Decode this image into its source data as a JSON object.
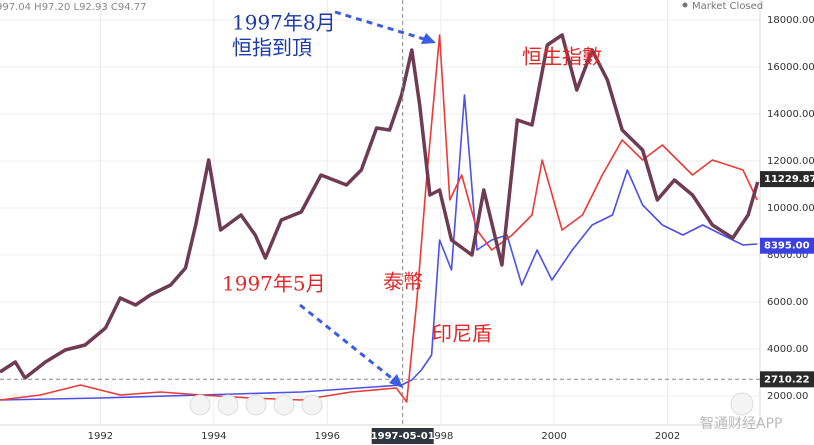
{
  "header": {
    "ohlc": "997.04 H97.20 L92.93 C94.77",
    "status": "Market Closed"
  },
  "watermark": "智通财经APP",
  "chart_data": {
    "type": "line",
    "xlim": [
      1990.23,
      2003.63
    ],
    "xticks": [
      1992,
      1994,
      1996,
      1998,
      2000,
      2002
    ],
    "ylim": [
      766,
      18851
    ],
    "yticks": [
      {
        "value": 2000,
        "label": "2000.00"
      },
      {
        "value": 4000,
        "label": "4000.00"
      },
      {
        "value": 6000,
        "label": "6000.00"
      },
      {
        "value": 8000,
        "label": "8000.00"
      },
      {
        "value": 10000,
        "label": "10000.00"
      },
      {
        "value": 12000,
        "label": "12000.00"
      },
      {
        "value": 14000,
        "label": "14000.00"
      },
      {
        "value": 16000,
        "label": "16000.00"
      },
      {
        "value": 18000,
        "label": "18000.00"
      }
    ],
    "grid": true,
    "series": [
      {
        "color": "#6e3b52",
        "width": 3.5,
        "x": [
          1990.23,
          1990.5,
          1990.67,
          1991.03,
          1991.38,
          1991.73,
          1992.09,
          1992.35,
          1992.62,
          1992.88,
          1993.24,
          1993.5,
          1993.68,
          1993.91,
          1994.12,
          1994.48,
          1994.73,
          1994.91,
          1995.19,
          1995.54,
          1995.89,
          1996.34,
          1996.6,
          1996.87,
          1997.1,
          1997.31,
          1997.49,
          1997.63,
          1997.81,
          1997.98,
          1998.19,
          1998.55,
          1998.76,
          1999.08,
          1999.35,
          1999.61,
          1999.88,
          2000.14,
          2000.4,
          2000.67,
          2000.94,
          2001.2,
          2001.56,
          2001.82,
          2002.12,
          2002.44,
          2002.79,
          2003.15,
          2003.42,
          2003.59
        ],
        "values": [
          3021,
          3447,
          2766,
          3447,
          3957,
          4170,
          4894,
          6170,
          5872,
          6298,
          6723,
          7447,
          9277,
          12043,
          9064,
          9702,
          8851,
          7872,
          9489,
          9830,
          11404,
          10979,
          11617,
          13404,
          13319,
          14809,
          16723,
          14383,
          10553,
          10766,
          8638,
          8000,
          10766,
          7574,
          13745,
          13532,
          16936,
          17362,
          15021,
          16723,
          15447,
          13319,
          12468,
          10340,
          11191,
          10553,
          9277,
          8723,
          9702,
          11106
        ]
      },
      {
        "color": "#ec3a36",
        "width": 1.6,
        "x": [
          1990.23,
          1990.94,
          1991.65,
          1992.35,
          1993.06,
          1993.77,
          1994.65,
          1995.54,
          1996.42,
          1997.22,
          1997.4,
          1997.58,
          1997.75,
          1997.98,
          1998.16,
          1998.37,
          1998.64,
          1998.9,
          1999.26,
          1999.61,
          1999.79,
          2000.14,
          2000.5,
          2000.85,
          2001.2,
          2001.56,
          2001.91,
          2002.44,
          2002.79,
          2003.33,
          2003.58
        ],
        "values": [
          1830,
          2043,
          2468,
          2043,
          2170,
          2043,
          1915,
          1830,
          2170,
          2340,
          1745,
          6085,
          11191,
          17362,
          10340,
          11404,
          9064,
          8213,
          8851,
          9702,
          12043,
          9064,
          9702,
          11404,
          12894,
          12043,
          12681,
          11404,
          12043,
          11617,
          10340
        ]
      },
      {
        "color": "#4d50ea",
        "width": 1.6,
        "x": [
          1990.23,
          1992.0,
          1993.77,
          1995.54,
          1997.31,
          1997.49,
          1997.66,
          1997.84,
          1997.98,
          1998.19,
          1998.42,
          1998.64,
          1998.9,
          1999.17,
          1999.43,
          1999.7,
          1999.96,
          2000.32,
          2000.67,
          2001.03,
          2001.29,
          2001.56,
          2001.91,
          2002.27,
          2002.62,
          2002.97,
          2003.33,
          2003.58
        ],
        "values": [
          1830,
          1915,
          2043,
          2170,
          2468,
          2681,
          3106,
          3745,
          8638,
          7362,
          14809,
          8213,
          8638,
          8851,
          6723,
          8213,
          6936,
          8213,
          9277,
          9702,
          11617,
          10127,
          9277,
          8851,
          9277,
          8851,
          8425,
          8468
        ]
      }
    ],
    "price_labels": [
      {
        "value": 11229.87,
        "color": "#2a2a2a"
      },
      {
        "value": 8395,
        "label": "8395.00",
        "color": "#3d40e0"
      },
      {
        "value": 2710.22,
        "label": "2710.22",
        "color": "#2a2a2a"
      }
    ],
    "crosshair_x": {
      "value": 1997.33,
      "label": "1997-05-01"
    },
    "annotations": [
      {
        "text": "1997年8月",
        "color": "#1b3aa6"
      },
      {
        "text": "恒指到頂",
        "color": "#1b3aa6"
      },
      {
        "text": "恒生指數",
        "color": "#e0282a"
      },
      {
        "text": "1997年5月",
        "color": "#e0282a"
      },
      {
        "text": "泰幣",
        "color": "#e0282a"
      },
      {
        "text": "印尼盾",
        "color": "#e0282a"
      }
    ]
  }
}
